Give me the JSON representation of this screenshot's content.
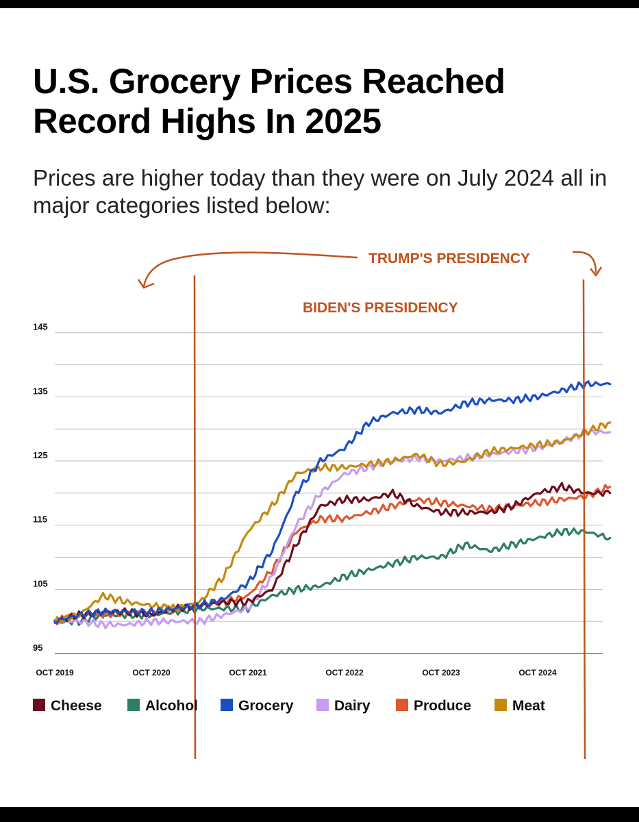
{
  "title": "U.S. Grocery Prices Reached Record Highs In 2025",
  "subtitle": "Prices are higher today than they were on July 2024 all in major categories listed below:",
  "annotations": {
    "trump": "TRUMP'S PRESIDENCY",
    "biden": "BIDEN'S PRESIDENCY"
  },
  "colors": {
    "Cheese": "#6b0d1e",
    "Alcohol": "#2e7d64",
    "Grocery": "#1a4fc4",
    "Dairy": "#c79cf0",
    "Produce": "#e0572e",
    "Meat": "#c4890e",
    "annotation": "#c0521c"
  },
  "chart_data": {
    "type": "line",
    "title": "U.S. Grocery Prices Reached Record Highs In 2025",
    "subtitle": "Prices are higher today than they were on July 2024 all in major categories listed below:",
    "x_ticks": [
      "OCT 2019",
      "OCT 2020",
      "OCT 2021",
      "OCT 2022",
      "OCT 2023",
      "OCT 2024"
    ],
    "y_ticks": [
      95,
      105,
      115,
      125,
      135,
      145
    ],
    "ylim": [
      95,
      147
    ],
    "xlim": [
      "OCT 2019",
      "JUL 2025"
    ],
    "grid": true,
    "legend_position": "bottom",
    "x": [
      "OCT 2019",
      "JAN 2020",
      "APR 2020",
      "JUL 2020",
      "OCT 2020",
      "JAN 2021",
      "APR 2021",
      "JUL 2021",
      "OCT 2021",
      "JAN 2022",
      "APR 2022",
      "JUL 2022",
      "OCT 2022",
      "JAN 2023",
      "APR 2023",
      "JUL 2023",
      "OCT 2023",
      "JAN 2024",
      "APR 2024",
      "JUL 2024",
      "OCT 2024",
      "JAN 2025",
      "APR 2025",
      "JUL 2025"
    ],
    "series": [
      {
        "name": "Cheese",
        "values": [
          100,
          101,
          101.5,
          101.5,
          101,
          102,
          102.5,
          103,
          103,
          105,
          112,
          118,
          119,
          119,
          120,
          118,
          117,
          117,
          117,
          118,
          120,
          121,
          120,
          120
        ]
      },
      {
        "name": "Alcohol",
        "values": [
          100,
          100,
          101,
          101,
          101,
          101.5,
          102,
          102,
          102,
          104,
          105,
          105.5,
          107,
          108,
          109,
          110,
          110,
          112,
          111,
          112,
          113,
          114,
          114,
          113
        ]
      },
      {
        "name": "Grocery",
        "values": [
          100,
          101,
          101.5,
          101.5,
          101.5,
          102,
          102.5,
          103.5,
          106,
          111,
          120,
          125,
          127,
          131,
          132.5,
          133,
          132.5,
          134,
          134.5,
          134.5,
          135,
          136,
          137,
          137
        ]
      },
      {
        "name": "Dairy",
        "values": [
          100,
          100,
          99.5,
          99.5,
          100,
          100,
          100,
          101,
          102,
          107,
          115,
          120,
          123,
          124,
          125,
          125.5,
          125,
          125.5,
          126,
          126.5,
          127,
          128,
          129.5,
          129.5
        ]
      },
      {
        "name": "Produce",
        "values": [
          100,
          101,
          101,
          101.5,
          101.5,
          102,
          102.5,
          103,
          104,
          108,
          114,
          116,
          116,
          117,
          118,
          119,
          118.5,
          118,
          117.5,
          118,
          118.5,
          119,
          119.5,
          121
        ]
      },
      {
        "name": "Meat",
        "values": [
          100,
          101,
          104,
          103,
          102.5,
          102,
          103,
          107,
          114,
          118,
          123,
          124,
          124,
          124.5,
          125,
          126,
          124.5,
          125,
          126.5,
          127,
          127.5,
          128,
          129.5,
          131
        ]
      }
    ]
  }
}
